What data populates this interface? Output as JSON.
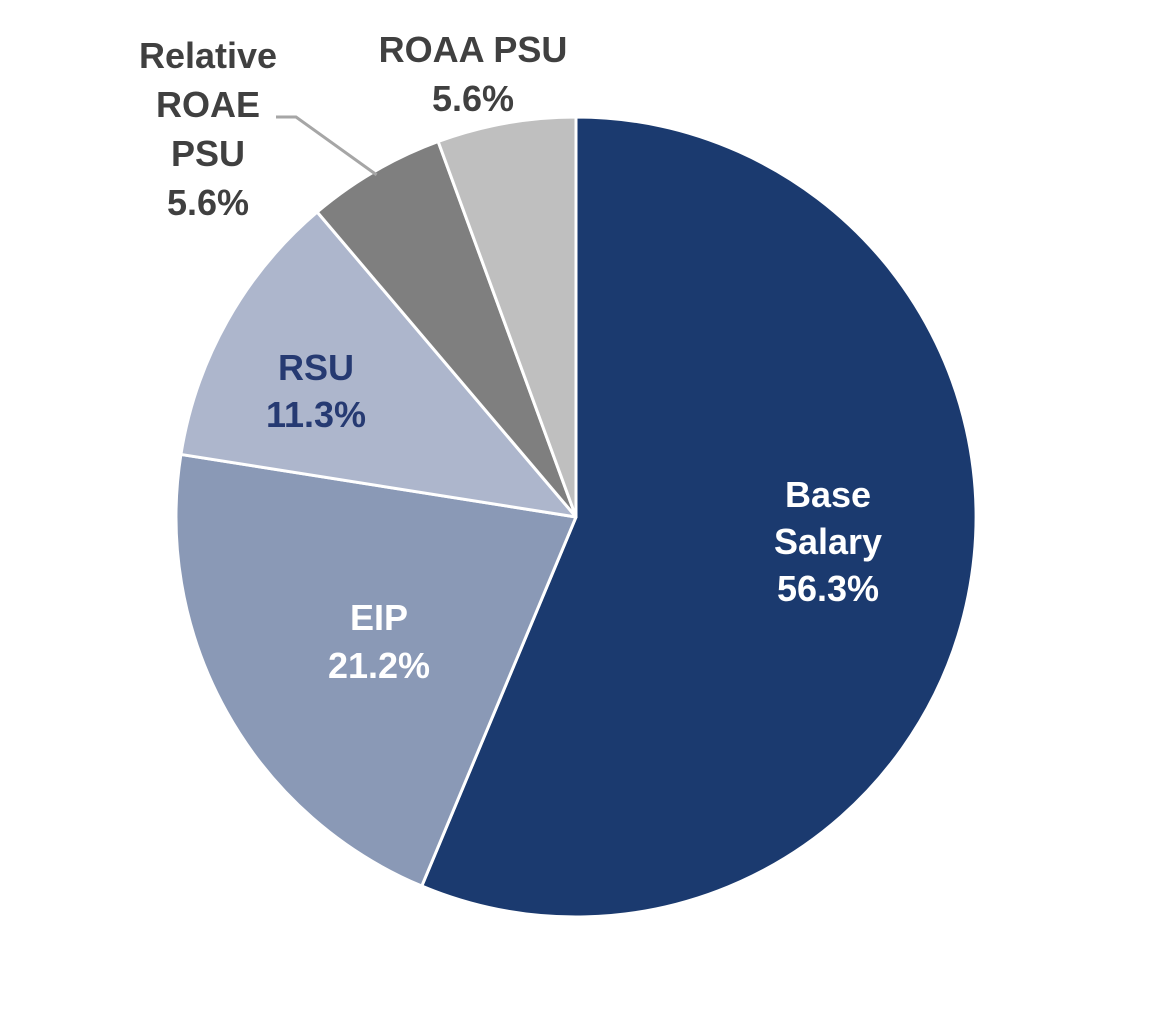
{
  "chart_data": {
    "type": "pie",
    "slices": [
      {
        "name": "Base Salary",
        "label_lines": [
          "Base",
          "Salary"
        ],
        "value": 56.3,
        "value_label": "56.3%",
        "color": "#1b3a6f",
        "label_color": "#ffffff"
      },
      {
        "name": "EIP",
        "label_lines": [
          "EIP"
        ],
        "value": 21.2,
        "value_label": "21.2%",
        "color": "#8a99b6",
        "label_color": "#ffffff"
      },
      {
        "name": "RSU",
        "label_lines": [
          "RSU"
        ],
        "value": 11.3,
        "value_label": "11.3%",
        "color": "#adb6cc",
        "label_color": "#263a72"
      },
      {
        "name": "Relative ROAE PSU",
        "label_lines": [
          "Relative",
          "ROAE",
          "PSU"
        ],
        "value": 5.6,
        "value_label": "5.6%",
        "color": "#7f7f7f",
        "label_color": "#404040"
      },
      {
        "name": "ROAA PSU",
        "label_lines": [
          "ROAA PSU"
        ],
        "value": 5.6,
        "value_label": "5.6%",
        "color": "#bfbfbf",
        "label_color": "#404040"
      }
    ],
    "start_angle": "12 o'clock",
    "direction": "clockwise",
    "legend": "none",
    "labels": "on slices; outside for the small slices"
  }
}
